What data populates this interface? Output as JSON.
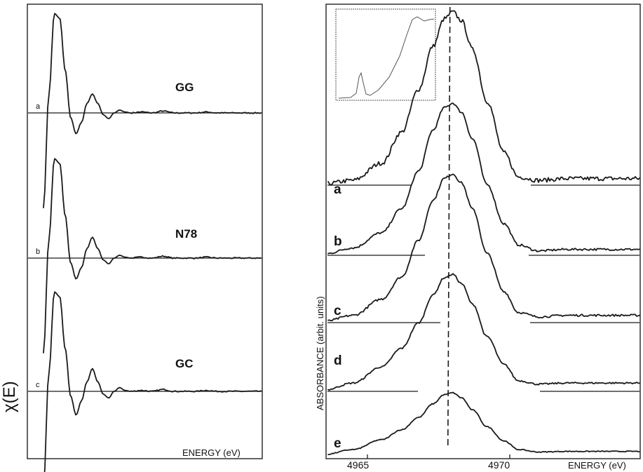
{
  "chart_data": [
    {
      "type": "line",
      "ylabel": "χ(E)",
      "xlabel": "ENERGY (eV)",
      "series": [
        {
          "name": "GG",
          "letter": "a",
          "x": [
            0,
            0.25,
            0.5,
            0.75,
            1.0,
            1.25,
            1.5,
            1.75,
            2.0,
            2.25,
            2.5,
            2.75,
            3.0,
            3.25,
            3.5,
            3.75,
            4.0,
            4.5,
            5.0,
            5.5,
            6.0,
            6.5,
            7.0,
            7.5,
            8.0,
            8.5,
            9.0,
            9.5,
            10.0
          ],
          "y": [
            -1.0,
            0.2,
            1.05,
            1.0,
            0.45,
            -0.05,
            -0.22,
            -0.1,
            0.1,
            0.2,
            0.1,
            -0.02,
            -0.06,
            0,
            0.03,
            0.01,
            0,
            0.01,
            0,
            0.02,
            0,
            0,
            0,
            0.01,
            0,
            0,
            0,
            0,
            0
          ]
        },
        {
          "name": "N78",
          "letter": "b",
          "x": [
            0,
            0.25,
            0.5,
            0.75,
            1.0,
            1.25,
            1.5,
            1.75,
            2.0,
            2.25,
            2.5,
            2.75,
            3.0,
            3.25,
            3.5,
            3.75,
            4.0,
            4.5,
            5.0,
            5.5,
            6.0,
            6.5,
            7.0,
            7.5,
            8.0,
            8.5,
            9.0,
            9.5,
            10.0
          ],
          "y": [
            -1.0,
            0.2,
            1.05,
            1.0,
            0.45,
            -0.05,
            -0.22,
            -0.1,
            0.1,
            0.22,
            0.1,
            -0.02,
            -0.06,
            0,
            0.03,
            0.01,
            0,
            0.01,
            0,
            0.02,
            0,
            0,
            0,
            0.01,
            0,
            0,
            0,
            0,
            0
          ]
        },
        {
          "name": "GC",
          "letter": "c",
          "x": [
            0,
            0.25,
            0.5,
            0.75,
            1.0,
            1.25,
            1.5,
            1.75,
            2.0,
            2.25,
            2.5,
            2.75,
            3.0,
            3.25,
            3.5,
            3.75,
            4.0,
            4.5,
            5.0,
            5.5,
            6.0,
            6.5,
            7.0,
            7.5,
            8.0,
            8.5,
            9.0,
            9.5,
            10.0
          ],
          "y": [
            -1.0,
            0.2,
            1.05,
            1.0,
            0.45,
            -0.05,
            -0.25,
            -0.1,
            0.1,
            0.24,
            0.1,
            -0.03,
            -0.07,
            0,
            0.04,
            0.01,
            0,
            0.01,
            0,
            0.02,
            0,
            0,
            0,
            0.01,
            0,
            0,
            0,
            0,
            0
          ]
        }
      ]
    },
    {
      "type": "line",
      "ylabel": "ABSORBANCE  (arbit. units)",
      "xlabel": "ENERGY (eV)",
      "x_ticks": [
        "4965",
        "4970"
      ],
      "series": [
        {
          "name": "a",
          "x": [
            4963.5,
            4964.5,
            4965.5,
            4966.2,
            4966.8,
            4967.3,
            4967.7,
            4968.0,
            4968.3,
            4968.7,
            4969.2,
            4969.8,
            4970.3,
            4971.0,
            4972.0
          ],
          "y": [
            0.0,
            0.02,
            0.12,
            0.3,
            0.55,
            0.8,
            0.96,
            1.0,
            0.95,
            0.78,
            0.48,
            0.18,
            0.04,
            0.02,
            0.03
          ]
        },
        {
          "name": "b",
          "x": [
            4963.5,
            4964.5,
            4965.5,
            4966.2,
            4966.8,
            4967.3,
            4967.7,
            4968.0,
            4968.3,
            4968.7,
            4969.2,
            4969.8,
            4970.3,
            4971.0,
            4972.0
          ],
          "y": [
            0.0,
            0.04,
            0.14,
            0.3,
            0.55,
            0.82,
            0.97,
            1.0,
            0.94,
            0.76,
            0.46,
            0.2,
            0.06,
            0.02,
            0.03
          ]
        },
        {
          "name": "c",
          "x": [
            4963.5,
            4964.5,
            4965.5,
            4966.2,
            4966.8,
            4967.3,
            4967.7,
            4968.0,
            4968.3,
            4968.7,
            4969.2,
            4969.8,
            4970.3,
            4971.0,
            4972.0
          ],
          "y": [
            0.0,
            0.04,
            0.15,
            0.3,
            0.55,
            0.82,
            0.97,
            1.0,
            0.94,
            0.76,
            0.46,
            0.2,
            0.06,
            0.03,
            0.04
          ]
        },
        {
          "name": "d",
          "x": [
            4963.5,
            4964.5,
            4965.5,
            4966.2,
            4966.8,
            4967.3,
            4967.7,
            4968.0,
            4968.3,
            4968.7,
            4969.2,
            4969.8,
            4970.3,
            4971.0,
            4972.0
          ],
          "y": [
            0.0,
            0.06,
            0.2,
            0.36,
            0.58,
            0.82,
            0.97,
            1.0,
            0.92,
            0.74,
            0.46,
            0.22,
            0.08,
            0.05,
            0.06
          ]
        },
        {
          "name": "e",
          "x": [
            4963.5,
            4964.5,
            4965.5,
            4966.2,
            4966.8,
            4967.3,
            4967.7,
            4968.0,
            4968.3,
            4968.7,
            4969.2,
            4969.8,
            4970.3,
            4971.0,
            4972.0
          ],
          "y": [
            0.0,
            0.08,
            0.24,
            0.4,
            0.6,
            0.82,
            0.97,
            1.0,
            0.92,
            0.72,
            0.45,
            0.22,
            0.08,
            0.04,
            0.05
          ]
        }
      ],
      "peak_energy": 4967.9
    }
  ]
}
